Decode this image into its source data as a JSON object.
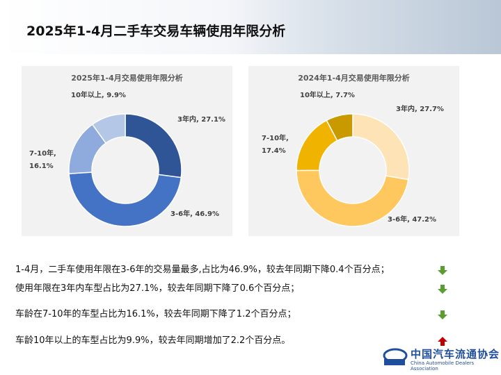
{
  "title": "2025年1-4月二手车交易车辆使用年限分析",
  "chart_data": [
    {
      "type": "donut",
      "title": "2025年1-4月交易使用年限分析",
      "values": [
        27.1,
        46.9,
        16.1,
        9.9
      ],
      "value_labels": [
        "3年内, 27.1%",
        "3-6年, 46.9%",
        "7-10年, 16.1%",
        "10年以上, 9.9%"
      ],
      "colors": [
        "#2f5597",
        "#4472c4",
        "#8faadc",
        "#b4c7e7"
      ]
    },
    {
      "type": "donut",
      "title": "2024年1-4月交易使用年限分析",
      "values": [
        27.7,
        47.2,
        17.4,
        7.7
      ],
      "value_labels": [
        "3年内, 27.7%",
        "3-6年, 47.2%",
        "7-10年, 17.4%",
        "10年以上, 7.7%"
      ],
      "colors": [
        "#fde3b5",
        "#ffc85f",
        "#efb300",
        "#c99a00"
      ]
    }
  ],
  "notes": [
    {
      "text": "1-4月，二手车使用年限在3-6年的交易量最多,占比为46.9%，较去年同期下降0.4个百分点；",
      "trend": "down"
    },
    {
      "text": "使用年限在3年内车型占比为27.1%，较去年同期下降了0.6个百分点；",
      "trend": "down"
    },
    {
      "text": "车龄在7-10年的车型占比为16.1%，较去年同期下降了1.2个百分点；",
      "trend": "down"
    },
    {
      "text": "车龄10年以上的车型占比为9.9%，较去年同期增加了2.2个百分点。",
      "trend": "up"
    }
  ],
  "logo": {
    "name": "中国汽车流通协会",
    "english": "China Automobile Dealers Association"
  }
}
